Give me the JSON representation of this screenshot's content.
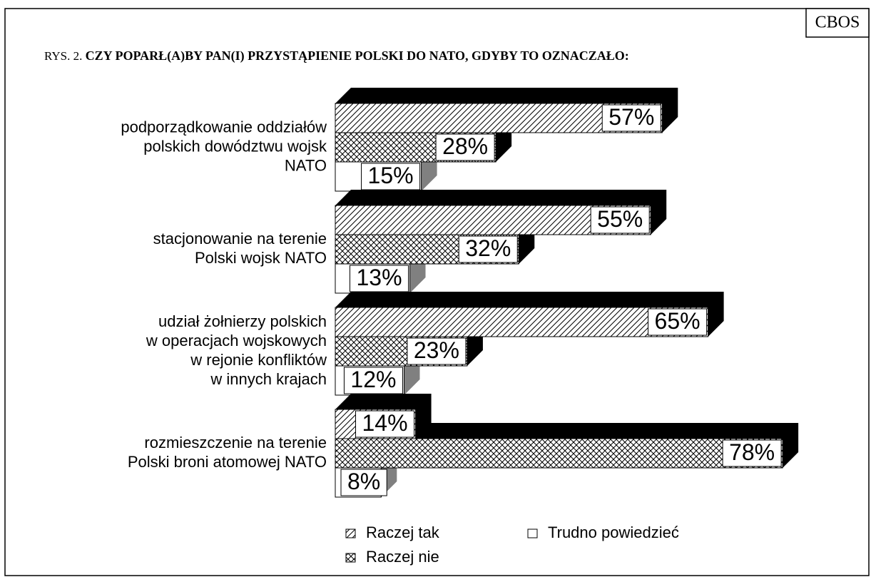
{
  "chart_data": {
    "type": "bar",
    "source": "CBOS",
    "figure_label": "RYS. 2.",
    "title": "CZY POPARŁ(A)BY PAN(I) PRZYSTĄPIENIE POLSKI DO NATO, GDYBY TO OZNACZAŁO:",
    "categories": [
      [
        "podporządkowanie oddziałów",
        "polskich dowództwu wojsk",
        "NATO"
      ],
      [
        "stacjonowanie na terenie",
        "Polski wojsk NATO"
      ],
      [
        "udział żołnierzy polskich",
        "w operacjach wojskowych",
        "w rejonie konfliktów",
        "w innych krajach"
      ],
      [
        "rozmieszczenie na terenie",
        "Polski broni atomowej NATO"
      ]
    ],
    "series": [
      {
        "name": "Raczej tak",
        "pattern": "hatch",
        "side_color": "#000000",
        "values": [
          57,
          55,
          65,
          14
        ],
        "value_labels": [
          "57%",
          "55%",
          "65%",
          "14%"
        ]
      },
      {
        "name": "Raczej nie",
        "pattern": "cross",
        "side_color": "#000000",
        "values": [
          28,
          32,
          23,
          78
        ],
        "value_labels": [
          "28%",
          "32%",
          "23%",
          "78%"
        ]
      },
      {
        "name": "Trudno powiedzieć",
        "pattern": "none",
        "side_color": "#808080",
        "values": [
          15,
          13,
          12,
          8
        ],
        "value_labels": [
          "15%",
          "13%",
          "12%",
          "8%"
        ]
      }
    ]
  }
}
